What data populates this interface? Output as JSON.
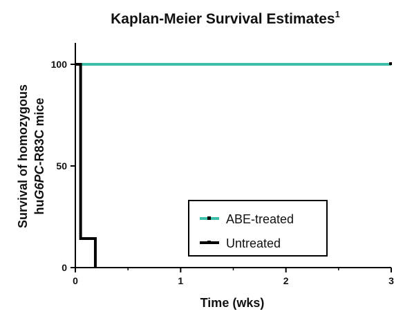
{
  "chart_data": {
    "type": "line",
    "title": "Kaplan-Meier Survival Estimates",
    "title_superscript": "1",
    "xlabel": "Time (wks)",
    "ylabel_line1": "Survival of homozygous",
    "ylabel_line2_prefix": "hu",
    "ylabel_line2_italic": "G6PC",
    "ylabel_line2_suffix": "-R83C mice",
    "xlim": [
      0,
      3
    ],
    "ylim": [
      0,
      100
    ],
    "x_ticks": [
      0,
      1,
      2,
      3
    ],
    "x_minor_ticks": [
      0.5,
      1.5,
      2.5
    ],
    "y_ticks": [
      0,
      50,
      100
    ],
    "legend_position": "lower-right",
    "series": [
      {
        "name": "ABE-treated",
        "color": "#3bbfa8",
        "step": true,
        "x": [
          0,
          3
        ],
        "y": [
          100,
          100
        ],
        "censor_marks": [
          {
            "x": 3,
            "y": 100
          }
        ]
      },
      {
        "name": "Untreated",
        "color": "#000000",
        "step": true,
        "x": [
          0,
          0.05,
          0.19
        ],
        "y": [
          100,
          14.3,
          0
        ]
      }
    ]
  }
}
